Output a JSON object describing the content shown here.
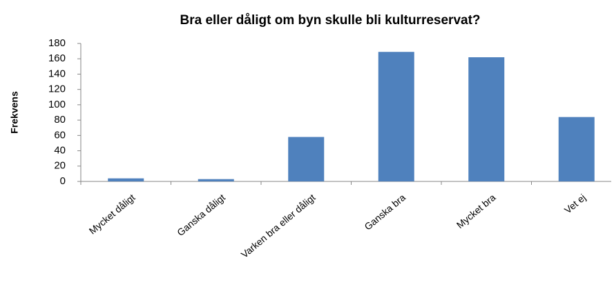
{
  "chart_data": {
    "type": "bar",
    "title": "Bra eller dåligt om byn skulle bli kulturreservat?",
    "y_label": "Frekvens",
    "categories": [
      "Mycket dåligt",
      "Ganska dåligt",
      "Varken bra eller dåligt",
      "Ganska bra",
      "Mycket bra",
      "Vet ej"
    ],
    "values": [
      4,
      3,
      58,
      169,
      162,
      84
    ],
    "color": "#4f81bd",
    "ylim": [
      0,
      180
    ],
    "yticks": [
      0,
      20,
      40,
      60,
      80,
      100,
      120,
      140,
      160,
      180
    ],
    "grid": false
  }
}
